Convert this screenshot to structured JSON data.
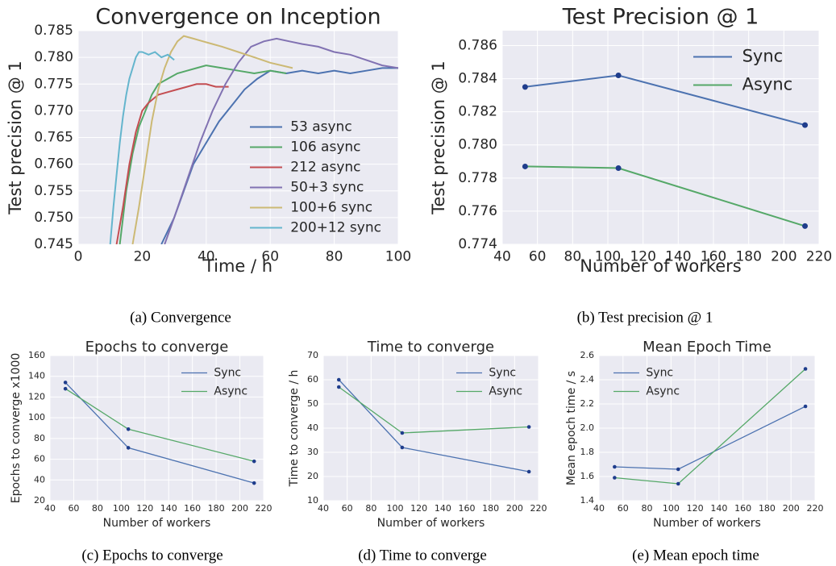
{
  "chart_data": [
    {
      "type": "line",
      "title": "Convergence on Inception",
      "xlabel": "Time / h",
      "ylabel": "Test precision @ 1",
      "caption": "(a) Convergence",
      "xlim": [
        0,
        100
      ],
      "xticks": [
        0,
        20,
        40,
        60,
        80,
        100
      ],
      "ylim": [
        0.745,
        0.785
      ],
      "yticks": [
        {
          "value": 0.745,
          "label": "0.745"
        },
        {
          "value": 0.75,
          "label": "0.750"
        },
        0.755,
        {
          "value": 0.76,
          "label": "0.760"
        },
        0.765,
        {
          "value": 0.77,
          "label": "0.770"
        },
        0.775,
        {
          "value": 0.78,
          "label": "0.780"
        },
        0.785
      ],
      "grid": true,
      "legend": "lower right",
      "markers": false,
      "series": [
        {
          "name": "53 async",
          "color": "#4c72b0",
          "x": [
            26,
            30,
            33,
            36,
            40,
            44,
            48,
            52,
            56,
            60,
            65,
            70,
            75,
            80,
            85,
            90,
            95,
            100
          ],
          "values": [
            0.745,
            0.75,
            0.755,
            0.76,
            0.764,
            0.768,
            0.771,
            0.774,
            0.776,
            0.7775,
            0.777,
            0.7775,
            0.777,
            0.7775,
            0.777,
            0.7775,
            0.778,
            0.778
          ]
        },
        {
          "name": "106 async",
          "color": "#55a868",
          "x": [
            13,
            15,
            17,
            19,
            21,
            23,
            25,
            28,
            31,
            34,
            37,
            40,
            45,
            50,
            55,
            60,
            65
          ],
          "values": [
            0.745,
            0.755,
            0.762,
            0.767,
            0.77,
            0.773,
            0.775,
            0.776,
            0.777,
            0.7775,
            0.778,
            0.7785,
            0.778,
            0.7775,
            0.777,
            0.7775,
            0.777
          ]
        },
        {
          "name": "212 async",
          "color": "#c44e52",
          "x": [
            12,
            14,
            16,
            18,
            20,
            22,
            25,
            28,
            31,
            34,
            37,
            40,
            43,
            47
          ],
          "values": [
            0.745,
            0.752,
            0.76,
            0.766,
            0.77,
            0.7715,
            0.773,
            0.7735,
            0.774,
            0.7745,
            0.775,
            0.775,
            0.7745,
            0.7745
          ]
        },
        {
          "name": "50+3 sync",
          "color": "#8172b2",
          "x": [
            27,
            30,
            34,
            38,
            42,
            46,
            50,
            54,
            58,
            62,
            66,
            70,
            75,
            80,
            85,
            90,
            95,
            100
          ],
          "values": [
            0.745,
            0.75,
            0.757,
            0.764,
            0.77,
            0.775,
            0.779,
            0.782,
            0.783,
            0.7835,
            0.783,
            0.7825,
            0.782,
            0.781,
            0.7805,
            0.7795,
            0.7785,
            0.778
          ]
        },
        {
          "name": "100+6 sync",
          "color": "#ccb974",
          "x": [
            17,
            19,
            21,
            23,
            25,
            27,
            29,
            31,
            33,
            36,
            39,
            42,
            45,
            50,
            55,
            60,
            67
          ],
          "values": [
            0.745,
            0.752,
            0.76,
            0.768,
            0.774,
            0.778,
            0.781,
            0.783,
            0.784,
            0.7835,
            0.783,
            0.7825,
            0.782,
            0.781,
            0.78,
            0.779,
            0.778
          ]
        },
        {
          "name": "200+12 sync",
          "color": "#64b5cd",
          "x": [
            10,
            11,
            12,
            13,
            14,
            15,
            16,
            17,
            18,
            19,
            20,
            22,
            24,
            26,
            28,
            30
          ],
          "values": [
            0.745,
            0.752,
            0.758,
            0.764,
            0.769,
            0.773,
            0.776,
            0.778,
            0.78,
            0.781,
            0.781,
            0.7805,
            0.781,
            0.78,
            0.7805,
            0.7795
          ]
        }
      ]
    },
    {
      "type": "line",
      "title": "Test Precision @ 1",
      "xlabel": "Number of workers",
      "ylabel": "Test precision @ 1",
      "caption": "(b) Test precision @ 1",
      "x": [
        53,
        106,
        212
      ],
      "xlim": [
        40,
        220
      ],
      "xticks": [
        40,
        60,
        80,
        100,
        120,
        140,
        160,
        180,
        200,
        220
      ],
      "ylim": [
        0.774,
        0.7869
      ],
      "yticks": [
        0.774,
        0.776,
        0.778,
        {
          "value": 0.78,
          "label": "0.780"
        },
        0.782,
        0.784,
        0.786
      ],
      "grid": true,
      "legend": "upper right",
      "markers": true,
      "marker_color": "#1f3d8c",
      "series": [
        {
          "name": "Sync",
          "color": "#4c72b0",
          "values": [
            0.7835,
            0.7842,
            0.7812
          ]
        },
        {
          "name": "Async",
          "color": "#55a868",
          "values": [
            0.7787,
            0.7786,
            0.7751
          ]
        }
      ]
    },
    {
      "type": "line",
      "title": "Epochs to converge",
      "xlabel": "Number of workers",
      "ylabel": "Epochs to converge x1000",
      "caption": "(c) Epochs to converge",
      "x": [
        53,
        106,
        212
      ],
      "xlim": [
        40,
        220
      ],
      "xticks": [
        40,
        60,
        80,
        100,
        120,
        140,
        160,
        180,
        200,
        220
      ],
      "ylim": [
        20,
        160
      ],
      "yticks": [
        20,
        40,
        60,
        80,
        100,
        120,
        140,
        160
      ],
      "grid": true,
      "legend": "upper right",
      "markers": true,
      "marker_color": "#1f3d8c",
      "series": [
        {
          "name": "Sync",
          "color": "#4c72b0",
          "values": [
            134,
            71,
            37
          ]
        },
        {
          "name": "Async",
          "color": "#55a868",
          "values": [
            128,
            89,
            58
          ]
        }
      ]
    },
    {
      "type": "line",
      "title": "Time to converge",
      "xlabel": "Number of workers",
      "ylabel": "Time to converge / h",
      "caption": "(d) Time to converge",
      "x": [
        53,
        106,
        212
      ],
      "xlim": [
        40,
        220
      ],
      "xticks": [
        40,
        60,
        80,
        100,
        120,
        140,
        160,
        180,
        200,
        220
      ],
      "ylim": [
        10,
        70
      ],
      "yticks": [
        10,
        20,
        30,
        40,
        50,
        60,
        70
      ],
      "grid": true,
      "legend": "upper right",
      "markers": true,
      "marker_color": "#1f3d8c",
      "series": [
        {
          "name": "Sync",
          "color": "#4c72b0",
          "values": [
            60,
            32,
            22
          ]
        },
        {
          "name": "Async",
          "color": "#55a868",
          "values": [
            57,
            38,
            40.5
          ]
        }
      ]
    },
    {
      "type": "line",
      "title": "Mean Epoch Time",
      "xlabel": "Number of workers",
      "ylabel": "Mean epoch time / s",
      "caption": "(e) Mean epoch time",
      "x": [
        53,
        106,
        212
      ],
      "xlim": [
        40,
        220
      ],
      "xticks": [
        40,
        60,
        80,
        100,
        120,
        140,
        160,
        180,
        200,
        220
      ],
      "ylim": [
        1.4,
        2.6
      ],
      "yticks": [
        1.4,
        1.6,
        1.8,
        {
          "value": 2,
          "label": "2.0"
        },
        2.2,
        2.4,
        2.6
      ],
      "grid": true,
      "legend": "upper left",
      "markers": true,
      "marker_color": "#1f3d8c",
      "series": [
        {
          "name": "Sync",
          "color": "#4c72b0",
          "values": [
            1.68,
            1.66,
            2.18
          ]
        },
        {
          "name": "Async",
          "color": "#55a868",
          "values": [
            1.59,
            1.54,
            2.49
          ]
        }
      ]
    }
  ]
}
